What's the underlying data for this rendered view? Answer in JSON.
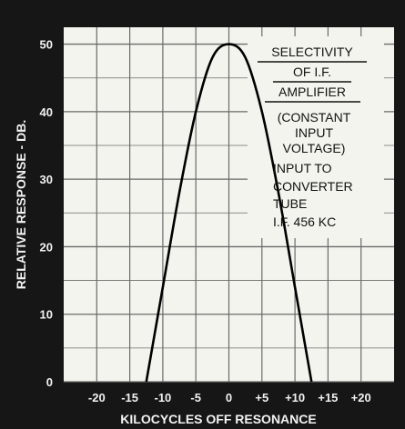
{
  "chart_data": {
    "type": "line",
    "title_lines": [
      "SELECTIVITY",
      "OF I.F.",
      "AMPLIFIER"
    ],
    "subtitle_lines": [
      "(CONSTANT",
      "INPUT",
      "VOLTAGE)",
      "INPUT TO",
      "CONVERTER",
      "TUBE",
      "I.F. 456 KC"
    ],
    "xlabel": "KILOCYCLES OFF RESONANCE",
    "ylabel": "RELATIVE RESPONSE - DB.",
    "xlim": [
      -25,
      25
    ],
    "ylim": [
      0,
      52.5
    ],
    "x_tick_labels": [
      {
        "value": -20,
        "label": "-20"
      },
      {
        "value": -15,
        "label": "-15"
      },
      {
        "value": -10,
        "label": "-10"
      },
      {
        "value": -5,
        "label": "-5"
      },
      {
        "value": 0,
        "label": "0"
      },
      {
        "value": 5,
        "label": "+5"
      },
      {
        "value": 10,
        "label": "+10"
      },
      {
        "value": 15,
        "label": "+15"
      },
      {
        "value": 20,
        "label": "+20"
      }
    ],
    "y_ticks": [
      0,
      10,
      20,
      30,
      40,
      50
    ],
    "grid": true,
    "series": [
      {
        "x": [
          -12.5,
          -10,
          -7.5,
          -5,
          -2.5,
          0,
          2.5,
          5,
          7.5,
          10,
          12.5
        ],
        "y": [
          0,
          14,
          28,
          40,
          48,
          50,
          48,
          40,
          28,
          14,
          0
        ]
      }
    ]
  },
  "colors": {
    "background": "#161616",
    "plot_area": "#f4f4ee",
    "grid": "#6a6a6a",
    "curve": "#000000",
    "text": "#f2f2f2"
  }
}
